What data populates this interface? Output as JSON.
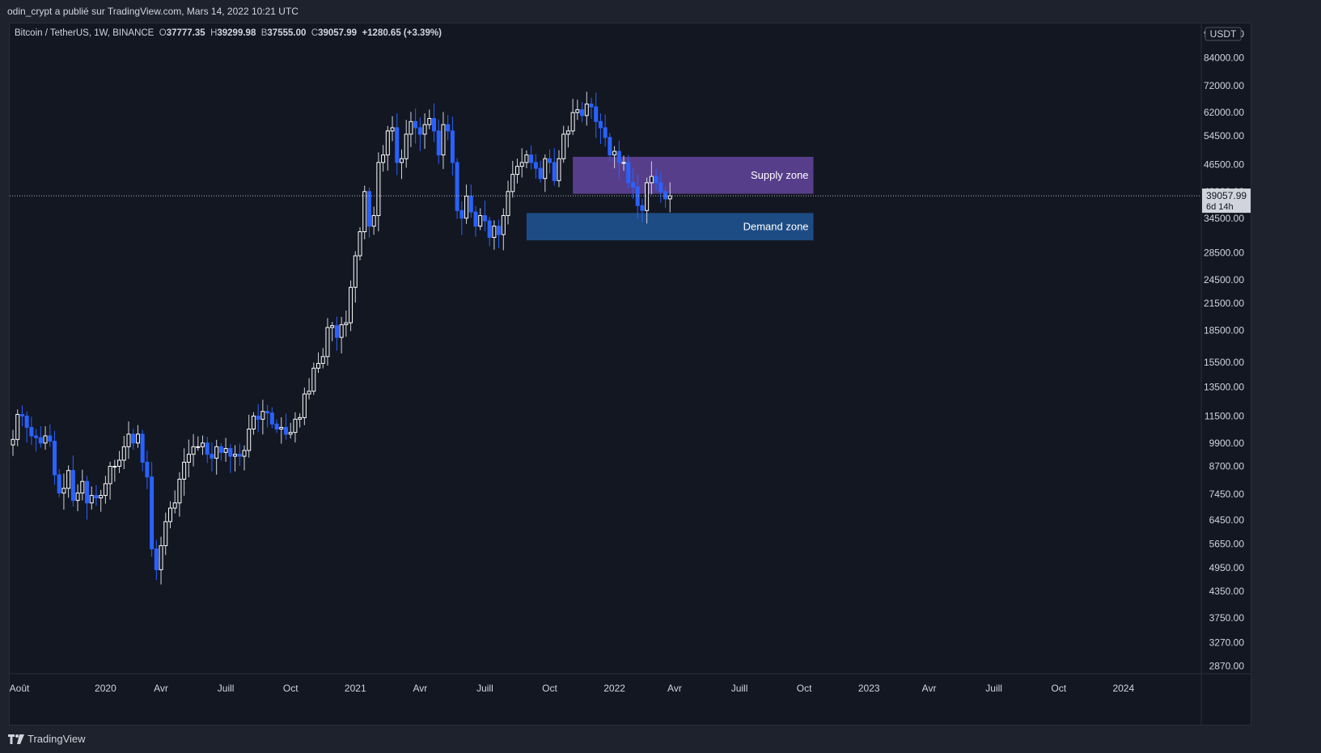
{
  "header": {
    "published_by": "odin_crypt a publié sur TradingView.com, Mars 14, 2022 10:21 UTC"
  },
  "legend": {
    "symbol": "Bitcoin / TetherUS, 1W, BINANCE",
    "open_label": "O",
    "open": "37777.35",
    "high_label": "H",
    "high": "39299.98",
    "low_label": "B",
    "low": "37555.00",
    "close_label": "C",
    "close": "39057.99",
    "change": "+1280.65 (+3.39%)"
  },
  "price_axis": {
    "currency": "USDT",
    "current_price": "39057.99",
    "countdown": "6d 14h"
  },
  "footer": {
    "brand": "TradingView"
  },
  "colors": {
    "background": "#131722",
    "up_candle": "#ffffff",
    "down_candle": "#2962ff",
    "supply_zone": "#5b4091",
    "demand_zone": "#1e4f8a"
  },
  "chart_data": {
    "type": "candlestick",
    "scale": "log",
    "title": "",
    "interval": "1W",
    "y_ticks": [
      96000,
      84000,
      72000,
      62000,
      54500,
      46500,
      40000,
      34500,
      28500,
      24500,
      21500,
      18500,
      15500,
      13500,
      11500,
      9900,
      8700,
      7450,
      6450,
      5650,
      4950,
      4350,
      3750,
      3270,
      2870
    ],
    "y_tick_labels": [
      "96000.00",
      "84000.00",
      "72000.00",
      "62000.00",
      "54500.00",
      "46500.00",
      "40000.00",
      "34500.00",
      "28500.00",
      "24500.00",
      "21500.00",
      "18500.00",
      "15500.00",
      "13500.00",
      "11500.00",
      "9900.00",
      "8700.00",
      "7450.00",
      "6450.00",
      "5650.00",
      "4950.00",
      "4350.00",
      "3750.00",
      "3270.00",
      "2870.00"
    ],
    "ylim": [
      2800,
      99000
    ],
    "x_ticks": [
      "Août",
      "2020",
      "Avr",
      "Juill",
      "Oct",
      "2021",
      "Avr",
      "Juill",
      "Oct",
      "2022",
      "Avr",
      "Juill",
      "Oct",
      "2023",
      "Avr",
      "Juill",
      "Oct",
      "2024"
    ],
    "x_tick_weeks": [
      0,
      20,
      32,
      46,
      60,
      74,
      88,
      102,
      116,
      130,
      143,
      157,
      171,
      185,
      198,
      212,
      226,
      240
    ],
    "zones": [
      {
        "label": "Supply zone",
        "low": 39500,
        "high": 48500,
        "from_week": 121,
        "to_week": 173
      },
      {
        "label": "Demand zone",
        "low": 30500,
        "high": 35500,
        "from_week": 111,
        "to_week": 173
      }
    ],
    "close_series": [
      10100,
      11600,
      11500,
      10800,
      10300,
      10200,
      9900,
      10300,
      10000,
      8300,
      7500,
      7700,
      8500,
      7200,
      7500,
      8000,
      7100,
      7400,
      7300,
      7400,
      7900,
      8700,
      8700,
      9000,
      9700,
      10400,
      9900,
      10400,
      8900,
      8200,
      5500,
      4900,
      5600,
      6400,
      6900,
      7100,
      8100,
      8900,
      9300,
      9700,
      9700,
      9900,
      9300,
      9100,
      9700,
      9400,
      9600,
      9200,
      9300,
      9200,
      9500,
      10700,
      11500,
      11300,
      11800,
      11700,
      11000,
      10700,
      10800,
      10400,
      10500,
      11300,
      11400,
      13000,
      13200,
      15000,
      15400,
      16000,
      18800,
      19000,
      17800,
      19100,
      19300,
      23500,
      28000,
      32000,
      40000,
      33000,
      35000,
      47000,
      49000,
      56000,
      57000,
      47000,
      48000,
      55000,
      59000,
      57000,
      55000,
      58000,
      60000,
      56000,
      49000,
      58000,
      56000,
      47000,
      36000,
      34500,
      39000,
      35700,
      33000,
      35000,
      34000,
      31000,
      33000,
      31500,
      35000,
      40000,
      44000,
      46000,
      47000,
      49000,
      47000,
      45500,
      43000,
      48000,
      47000,
      42500,
      48000,
      55000,
      56000,
      62000,
      63000,
      61000,
      65000,
      64000,
      59000,
      57000,
      54000,
      49000,
      50000,
      47000,
      47000,
      42000,
      41000,
      37000,
      36000,
      42000,
      43500,
      42000,
      40000,
      38400,
      39058
    ]
  }
}
